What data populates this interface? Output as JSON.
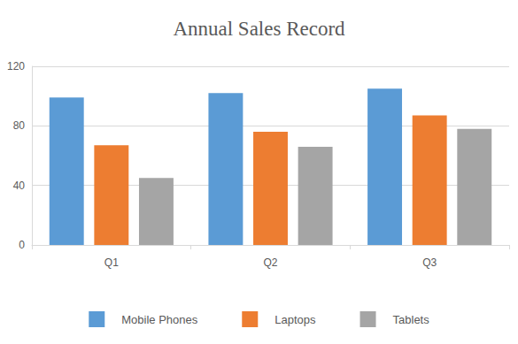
{
  "chart_data": {
    "type": "bar",
    "title": "Annual Sales Record",
    "categories": [
      "Q1",
      "Q2",
      "Q3"
    ],
    "series": [
      {
        "name": "Mobile Phones",
        "color": "#5b9bd5",
        "values": [
          99,
          102,
          105
        ]
      },
      {
        "name": "Laptops",
        "color": "#ed7d31",
        "values": [
          67,
          76,
          87
        ]
      },
      {
        "name": "Tablets",
        "color": "#a5a5a5",
        "values": [
          45,
          66,
          78
        ]
      }
    ],
    "ylim": [
      0,
      120
    ],
    "yticks": [
      0,
      40,
      80,
      120
    ],
    "grid": true,
    "legend": "bottom"
  }
}
